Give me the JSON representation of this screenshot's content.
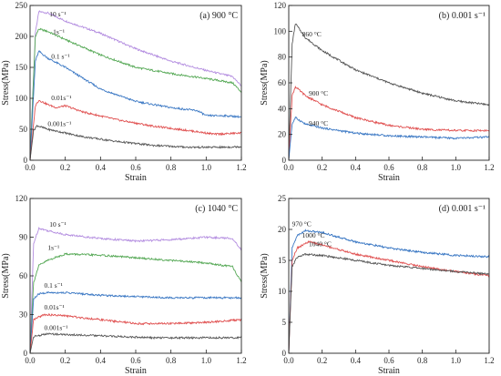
{
  "chart_data": [
    {
      "type": "line",
      "panel_label": "(a) 900 °C",
      "xlabel": "Strain",
      "ylabel": "Stress(MPa)",
      "xlim": [
        0,
        1.2
      ],
      "ylim": [
        0,
        250
      ],
      "xticks": [
        0.0,
        0.2,
        0.4,
        0.6,
        0.8,
        1.0,
        1.2
      ],
      "yticks": [
        0,
        50,
        100,
        150,
        200,
        250
      ],
      "xtick_labels": [
        "0.0",
        "0.2",
        "0.4",
        "0.6",
        "0.8",
        "1.0",
        "1.2"
      ],
      "ytick_labels": [
        "0",
        "50",
        "100",
        "150",
        "200",
        "250"
      ],
      "grid": false,
      "series": [
        {
          "name": "10 s⁻¹",
          "color": "#b48ee0",
          "label_at": [
            0.11,
            232
          ],
          "points": [
            [
              0,
              0
            ],
            [
              0.03,
              205
            ],
            [
              0.05,
              240
            ],
            [
              0.1,
              238
            ],
            [
              0.2,
              225
            ],
            [
              0.4,
              205
            ],
            [
              0.6,
              180
            ],
            [
              0.8,
              160
            ],
            [
              1.0,
              145
            ],
            [
              1.15,
              135
            ],
            [
              1.2,
              120
            ]
          ]
        },
        {
          "name": "1s⁻¹",
          "color": "#55a855",
          "label_at": [
            0.13,
            204
          ],
          "points": [
            [
              0,
              0
            ],
            [
              0.03,
              200
            ],
            [
              0.05,
              212
            ],
            [
              0.1,
              208
            ],
            [
              0.2,
              195
            ],
            [
              0.4,
              170
            ],
            [
              0.6,
              150
            ],
            [
              0.8,
              140
            ],
            [
              1.0,
              132
            ],
            [
              1.15,
              125
            ],
            [
              1.2,
              110
            ]
          ]
        },
        {
          "name": "0.1 s⁻¹",
          "color": "#3b78c4",
          "label_at": [
            0.12,
            164
          ],
          "points": [
            [
              0,
              0
            ],
            [
              0.03,
              160
            ],
            [
              0.05,
              176
            ],
            [
              0.1,
              165
            ],
            [
              0.2,
              150
            ],
            [
              0.4,
              115
            ],
            [
              0.6,
              95
            ],
            [
              0.8,
              85
            ],
            [
              0.95,
              80
            ],
            [
              1.0,
              72
            ],
            [
              1.1,
              72
            ],
            [
              1.2,
              70
            ]
          ]
        },
        {
          "name": "0.01s⁻¹",
          "color": "#e05050",
          "label_at": [
            0.12,
            97
          ],
          "points": [
            [
              0,
              0
            ],
            [
              0.03,
              88
            ],
            [
              0.05,
              97
            ],
            [
              0.1,
              90
            ],
            [
              0.15,
              85
            ],
            [
              0.2,
              88
            ],
            [
              0.3,
              78
            ],
            [
              0.5,
              65
            ],
            [
              0.7,
              55
            ],
            [
              0.9,
              48
            ],
            [
              1.05,
              42
            ],
            [
              1.2,
              44
            ]
          ]
        },
        {
          "name": "0.001s⁻¹",
          "color": "#555555",
          "label_at": [
            0.1,
            55
          ],
          "points": [
            [
              0,
              0
            ],
            [
              0.02,
              48
            ],
            [
              0.04,
              56
            ],
            [
              0.1,
              50
            ],
            [
              0.3,
              38
            ],
            [
              0.5,
              30
            ],
            [
              0.7,
              24
            ],
            [
              0.9,
              21
            ],
            [
              1.1,
              21
            ],
            [
              1.2,
              22
            ]
          ]
        }
      ]
    },
    {
      "type": "line",
      "panel_label": "(b) 0.001 s⁻¹",
      "xlabel": "Strain",
      "ylabel": "Stress(MPa)",
      "xlim": [
        0,
        1.2
      ],
      "ylim": [
        0,
        120
      ],
      "xticks": [
        0.0,
        0.2,
        0.4,
        0.6,
        0.8,
        1.0,
        1.2
      ],
      "yticks": [
        0,
        20,
        40,
        60,
        80,
        100,
        120
      ],
      "xtick_labels": [
        "0.0",
        "0.2",
        "0.4",
        "0.6",
        "0.8",
        "1.0",
        "1.2"
      ],
      "ytick_labels": [
        "0",
        "20",
        "40",
        "60",
        "80",
        "100",
        "120"
      ],
      "grid": false,
      "series": [
        {
          "name": "860 °C",
          "color": "#555555",
          "label_at": [
            0.08,
            96
          ],
          "points": [
            [
              0,
              0
            ],
            [
              0.02,
              90
            ],
            [
              0.04,
              106
            ],
            [
              0.1,
              95
            ],
            [
              0.2,
              85
            ],
            [
              0.4,
              70
            ],
            [
              0.6,
              60
            ],
            [
              0.8,
              52
            ],
            [
              1.0,
              46
            ],
            [
              1.2,
              43
            ]
          ]
        },
        {
          "name": "900 °C",
          "color": "#e05050",
          "label_at": [
            0.12,
            50
          ],
          "points": [
            [
              0,
              0
            ],
            [
              0.02,
              50
            ],
            [
              0.04,
              57
            ],
            [
              0.1,
              50
            ],
            [
              0.2,
              43
            ],
            [
              0.4,
              33
            ],
            [
              0.6,
              27
            ],
            [
              0.8,
              24
            ],
            [
              1.0,
              23
            ],
            [
              1.2,
              23
            ]
          ]
        },
        {
          "name": "940 °C",
          "color": "#3b78c4",
          "label_at": [
            0.12,
            27
          ],
          "points": [
            [
              0,
              0
            ],
            [
              0.02,
              28
            ],
            [
              0.04,
              33
            ],
            [
              0.1,
              28
            ],
            [
              0.2,
              25
            ],
            [
              0.4,
              21
            ],
            [
              0.6,
              19
            ],
            [
              0.8,
              18
            ],
            [
              1.0,
              17
            ],
            [
              1.2,
              18
            ]
          ]
        }
      ]
    },
    {
      "type": "line",
      "panel_label": "(c) 1040 °C",
      "xlabel": "Strain",
      "ylabel": "Stress(MPa)",
      "xlim": [
        0,
        1.2
      ],
      "ylim": [
        0,
        120
      ],
      "xticks": [
        0.0,
        0.2,
        0.4,
        0.6,
        0.8,
        1.0,
        1.2
      ],
      "yticks": [
        0,
        30,
        60,
        90,
        120
      ],
      "xtick_labels": [
        "0.0",
        "0.2",
        "0.4",
        "0.6",
        "0.8",
        "1.0",
        "1.2"
      ],
      "ytick_labels": [
        "0",
        "30",
        "60",
        "90",
        "120"
      ],
      "grid": false,
      "series": [
        {
          "name": "10 s⁻¹",
          "color": "#b48ee0",
          "label_at": [
            0.11,
            98
          ],
          "points": [
            [
              0,
              0
            ],
            [
              0.02,
              85
            ],
            [
              0.05,
              97
            ],
            [
              0.1,
              95
            ],
            [
              0.2,
              92
            ],
            [
              0.4,
              89
            ],
            [
              0.6,
              87
            ],
            [
              0.8,
              88
            ],
            [
              1.0,
              90
            ],
            [
              1.15,
              89
            ],
            [
              1.2,
              80
            ]
          ]
        },
        {
          "name": "1s⁻¹",
          "color": "#55a855",
          "label_at": [
            0.1,
            80
          ],
          "points": [
            [
              0,
              0
            ],
            [
              0.02,
              55
            ],
            [
              0.05,
              68
            ],
            [
              0.1,
              72
            ],
            [
              0.2,
              77
            ],
            [
              0.4,
              76
            ],
            [
              0.6,
              74
            ],
            [
              0.8,
              72
            ],
            [
              1.0,
              70
            ],
            [
              1.15,
              67
            ],
            [
              1.2,
              55
            ]
          ]
        },
        {
          "name": "0.1 s⁻¹",
          "color": "#3b78c4",
          "label_at": [
            0.08,
            51
          ],
          "points": [
            [
              0,
              0
            ],
            [
              0.02,
              42
            ],
            [
              0.05,
              46
            ],
            [
              0.1,
              47
            ],
            [
              0.2,
              47
            ],
            [
              0.4,
              45
            ],
            [
              0.6,
              44
            ],
            [
              0.8,
              43
            ],
            [
              1.0,
              43
            ],
            [
              1.2,
              43
            ]
          ]
        },
        {
          "name": "0.01s⁻¹",
          "color": "#e05050",
          "label_at": [
            0.08,
            34
          ],
          "points": [
            [
              0,
              0
            ],
            [
              0.02,
              26
            ],
            [
              0.08,
              30
            ],
            [
              0.2,
              29
            ],
            [
              0.4,
              26
            ],
            [
              0.6,
              23
            ],
            [
              0.8,
              23
            ],
            [
              1.0,
              24
            ],
            [
              1.2,
              26
            ]
          ]
        },
        {
          "name": "0.001s⁻¹",
          "color": "#555555",
          "label_at": [
            0.08,
            18
          ],
          "points": [
            [
              0,
              0
            ],
            [
              0.02,
              13
            ],
            [
              0.1,
              15
            ],
            [
              0.3,
              14
            ],
            [
              0.5,
              13
            ],
            [
              0.7,
              12
            ],
            [
              0.9,
              12
            ],
            [
              1.1,
              12
            ],
            [
              1.2,
              12
            ]
          ]
        }
      ]
    },
    {
      "type": "line",
      "panel_label": "(d) 0.001 s⁻¹",
      "xlabel": "Strain",
      "ylabel": "Stress(MPa)",
      "xlim": [
        0,
        1.2
      ],
      "ylim": [
        0,
        25
      ],
      "xticks": [
        0.0,
        0.2,
        0.4,
        0.6,
        0.8,
        1.0,
        1.2
      ],
      "yticks": [
        0,
        5,
        10,
        15,
        20,
        25
      ],
      "xtick_labels": [
        "0.0",
        "0.2",
        "0.4",
        "0.6",
        "0.8",
        "1.0",
        "1.2"
      ],
      "ytick_labels": [
        "0",
        "5",
        "10",
        "15",
        "20",
        "25"
      ],
      "grid": false,
      "series": [
        {
          "name": "970 °C",
          "color": "#3b78c4",
          "label_at": [
            0.02,
            20.5
          ],
          "points": [
            [
              0,
              0
            ],
            [
              0.02,
              17
            ],
            [
              0.05,
              19
            ],
            [
              0.1,
              19.8
            ],
            [
              0.2,
              19.5
            ],
            [
              0.4,
              18
            ],
            [
              0.6,
              17
            ],
            [
              0.8,
              16.3
            ],
            [
              1.0,
              15.8
            ],
            [
              1.2,
              15.6
            ]
          ]
        },
        {
          "name": "1000 °C",
          "color": "#e05050",
          "label_at": [
            0.08,
            18.7
          ],
          "points": [
            [
              0,
              0
            ],
            [
              0.02,
              15
            ],
            [
              0.05,
              17
            ],
            [
              0.12,
              18
            ],
            [
              0.2,
              17.5
            ],
            [
              0.4,
              16
            ],
            [
              0.6,
              15
            ],
            [
              0.8,
              14
            ],
            [
              1.0,
              13.2
            ],
            [
              1.2,
              12.5
            ]
          ]
        },
        {
          "name": "1040 °C",
          "color": "#555555",
          "label_at": [
            0.12,
            17.3
          ],
          "points": [
            [
              0,
              0
            ],
            [
              0.02,
              14
            ],
            [
              0.05,
              15.5
            ],
            [
              0.1,
              16
            ],
            [
              0.2,
              15.8
            ],
            [
              0.4,
              15
            ],
            [
              0.6,
              14.2
            ],
            [
              0.8,
              13.7
            ],
            [
              1.0,
              13.2
            ],
            [
              1.2,
              12.8
            ]
          ]
        }
      ]
    }
  ]
}
